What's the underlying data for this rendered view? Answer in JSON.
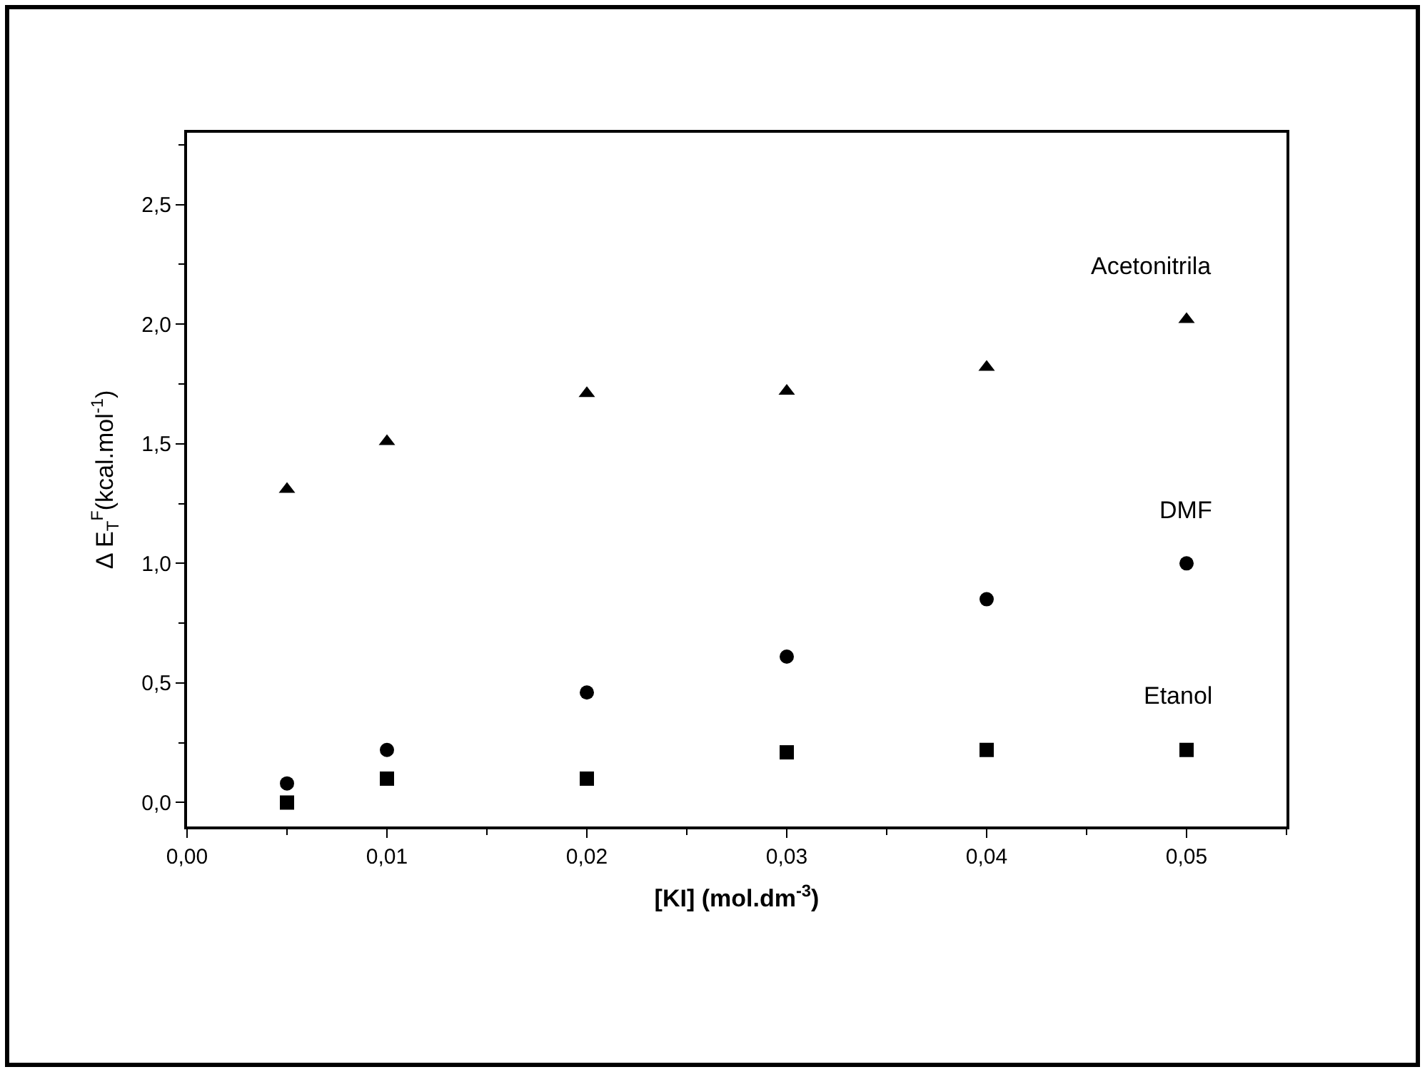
{
  "chart_data": {
    "type": "scatter",
    "xlabel": "[KI] (mol.dm$^{-3}$)",
    "ylabel": "Δ E$_{T}$$^{F}$(kcal.mol$^{-1}$)",
    "x": [
      0.005,
      0.01,
      0.02,
      0.03,
      0.04,
      0.05
    ],
    "series": [
      {
        "name": "Acetonitrila",
        "color": "#000000",
        "marker": "triangle",
        "values": [
          1.31,
          1.51,
          1.71,
          1.72,
          1.82,
          2.02
        ]
      },
      {
        "name": "DMF",
        "color": "#000000",
        "marker": "circle",
        "values": [
          0.08,
          0.22,
          0.46,
          0.61,
          0.85,
          1.0
        ]
      },
      {
        "name": "Etanol",
        "color": "#000000",
        "marker": "square",
        "values": [
          0.0,
          0.1,
          0.1,
          0.21,
          0.22,
          0.22
        ]
      }
    ],
    "xlim": [
      0.0,
      0.055
    ],
    "xticks": [
      {
        "value": 0,
        "label": "0,00"
      },
      {
        "value": 0.01,
        "label": "0,01"
      },
      {
        "value": 0.02,
        "label": "0,02"
      },
      {
        "value": 0.03,
        "label": "0,03"
      },
      {
        "value": 0.04,
        "label": "0,04"
      },
      {
        "value": 0.05,
        "label": "0,05"
      }
    ],
    "ylim": [
      -0.1,
      2.8
    ],
    "yticks": [
      {
        "value": 0,
        "label": "0,0"
      },
      {
        "value": 0.5,
        "label": "0,5"
      },
      {
        "value": 1.0,
        "label": "1,0"
      },
      {
        "value": 1.5,
        "label": "1,5"
      },
      {
        "value": 2.0,
        "label": "2,0"
      },
      {
        "value": 2.5,
        "label": "2,5"
      }
    ],
    "legend": false
  }
}
